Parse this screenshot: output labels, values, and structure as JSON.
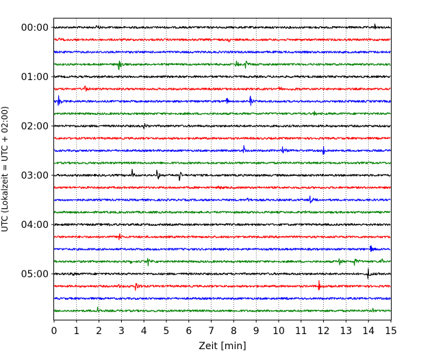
{
  "chart_data": {
    "type": "line",
    "subtype": "helicorder",
    "title": "",
    "xlabel": "Zeit  [min]",
    "ylabel": "UTC (Lokalzeit = UTC + 02:00)",
    "xlim": [
      0,
      15
    ],
    "x_ticks": [
      0,
      1,
      2,
      3,
      4,
      5,
      6,
      7,
      8,
      9,
      10,
      11,
      12,
      13,
      14,
      15
    ],
    "grid": "vertical dotted",
    "legend": "none",
    "y_tick_labels": [
      "00:00",
      "01:00",
      "02:00",
      "03:00",
      "04:00",
      "05:00"
    ],
    "color_cycle": [
      "#000000",
      "#ff0000",
      "#0000ff",
      "#008000"
    ],
    "rows": [
      {
        "start": "00:00",
        "color": "#000000",
        "events": [
          {
            "t": 1.9,
            "amp": 0.55
          },
          {
            "t": 14.3,
            "amp": 0.45
          }
        ]
      },
      {
        "start": "00:15",
        "color": "#ff0000",
        "events": [
          {
            "t": 0.25,
            "amp": 0.3
          },
          {
            "t": 7.8,
            "amp": 0.4
          }
        ]
      },
      {
        "start": "00:30",
        "color": "#0000ff",
        "events": []
      },
      {
        "start": "00:45",
        "color": "#008000",
        "events": [
          {
            "t": 2.9,
            "amp": 0.8
          },
          {
            "t": 8.1,
            "amp": 0.65
          },
          {
            "t": 8.55,
            "amp": 0.85
          }
        ]
      },
      {
        "start": "01:00",
        "color": "#000000",
        "events": []
      },
      {
        "start": "01:15",
        "color": "#ff0000",
        "events": [
          {
            "t": 1.35,
            "amp": 0.95
          },
          {
            "t": 10.0,
            "amp": 0.55
          },
          {
            "t": 10.6,
            "amp": 0.4
          }
        ]
      },
      {
        "start": "01:30",
        "color": "#0000ff",
        "events": [
          {
            "t": 0.2,
            "amp": 0.9
          },
          {
            "t": 7.7,
            "amp": 0.6
          },
          {
            "t": 8.75,
            "amp": 0.85
          },
          {
            "t": 13.0,
            "amp": 0.3
          }
        ]
      },
      {
        "start": "01:45",
        "color": "#008000",
        "events": [
          {
            "t": 11.6,
            "amp": 0.4
          }
        ]
      },
      {
        "start": "02:00",
        "color": "#000000",
        "events": [
          {
            "t": 4.0,
            "amp": 0.6
          },
          {
            "t": 9.3,
            "amp": 0.35
          }
        ]
      },
      {
        "start": "02:15",
        "color": "#ff0000",
        "events": []
      },
      {
        "start": "02:30",
        "color": "#0000ff",
        "events": [
          {
            "t": 8.45,
            "amp": 0.85
          },
          {
            "t": 10.2,
            "amp": 0.75
          },
          {
            "t": 12.0,
            "amp": 0.95
          }
        ]
      },
      {
        "start": "02:45",
        "color": "#008000",
        "events": []
      },
      {
        "start": "03:00",
        "color": "#000000",
        "events": [
          {
            "t": 3.5,
            "amp": 0.95
          },
          {
            "t": 4.6,
            "amp": 0.85
          },
          {
            "t": 5.6,
            "amp": 0.95
          }
        ]
      },
      {
        "start": "03:15",
        "color": "#ff0000",
        "events": [
          {
            "t": 7.35,
            "amp": 0.35
          }
        ]
      },
      {
        "start": "03:30",
        "color": "#0000ff",
        "events": [
          {
            "t": 8.6,
            "amp": 0.35
          },
          {
            "t": 11.4,
            "amp": 0.75
          }
        ]
      },
      {
        "start": "03:45",
        "color": "#008000",
        "events": [
          {
            "t": 11.2,
            "amp": 0.3
          }
        ]
      },
      {
        "start": "04:00",
        "color": "#000000",
        "events": [
          {
            "t": 2.4,
            "amp": 0.35
          }
        ]
      },
      {
        "start": "04:15",
        "color": "#ff0000",
        "events": [
          {
            "t": 2.9,
            "amp": 0.85
          }
        ]
      },
      {
        "start": "04:30",
        "color": "#0000ff",
        "events": [
          {
            "t": 14.1,
            "amp": 0.75
          }
        ]
      },
      {
        "start": "04:45",
        "color": "#008000",
        "events": [
          {
            "t": 3.4,
            "amp": 0.6
          },
          {
            "t": 4.2,
            "amp": 0.7
          },
          {
            "t": 12.7,
            "amp": 0.75
          },
          {
            "t": 13.4,
            "amp": 0.9
          },
          {
            "t": 14.55,
            "amp": 0.8
          }
        ]
      },
      {
        "start": "05:00",
        "color": "#000000",
        "events": [
          {
            "t": 0.8,
            "amp": 0.35
          },
          {
            "t": 14.0,
            "amp": 1.0
          }
        ]
      },
      {
        "start": "05:15",
        "color": "#ff0000",
        "events": [
          {
            "t": 2.9,
            "amp": 0.55
          },
          {
            "t": 3.65,
            "amp": 0.95
          },
          {
            "t": 11.8,
            "amp": 0.8
          }
        ]
      },
      {
        "start": "05:30",
        "color": "#0000ff",
        "events": [
          {
            "t": 10.4,
            "amp": 0.25
          }
        ]
      },
      {
        "start": "05:45",
        "color": "#008000",
        "events": [
          {
            "t": 1.95,
            "amp": 0.7
          },
          {
            "t": 14.2,
            "amp": 0.45
          }
        ]
      }
    ]
  }
}
